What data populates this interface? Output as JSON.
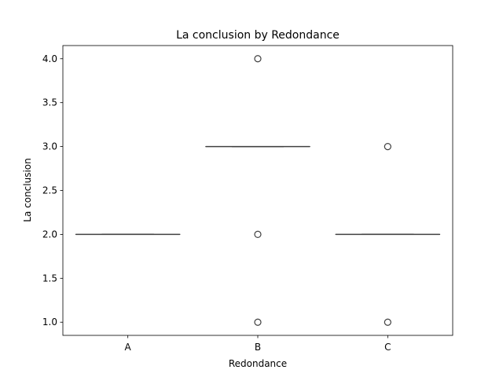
{
  "chart_data": {
    "type": "box",
    "title": "La conclusion by Redondance",
    "xlabel": "Redondance",
    "ylabel": "La conclusion",
    "categories": [
      "A",
      "B",
      "C"
    ],
    "boxes": [
      {
        "category": "A",
        "q1": 2.0,
        "median": 2.0,
        "q3": 2.0,
        "whisker_low": 2.0,
        "whisker_high": 2.0,
        "outliers": []
      },
      {
        "category": "B",
        "q1": 3.0,
        "median": 3.0,
        "q3": 3.0,
        "whisker_low": 3.0,
        "whisker_high": 3.0,
        "outliers": [
          4.0,
          2.0,
          1.0
        ]
      },
      {
        "category": "C",
        "q1": 2.0,
        "median": 2.0,
        "q3": 2.0,
        "whisker_low": 2.0,
        "whisker_high": 2.0,
        "outliers": [
          3.0,
          1.0
        ]
      }
    ],
    "ylim": [
      0.85,
      4.15
    ],
    "yticks": [
      1.0,
      1.5,
      2.0,
      2.5,
      3.0,
      3.5,
      4.0
    ],
    "ytick_labels": [
      "1.0",
      "1.5",
      "2.0",
      "2.5",
      "3.0",
      "3.5",
      "4.0"
    ],
    "grid": false,
    "colors": {
      "box_line": "#3f3f3f",
      "axis": "#000000"
    }
  }
}
